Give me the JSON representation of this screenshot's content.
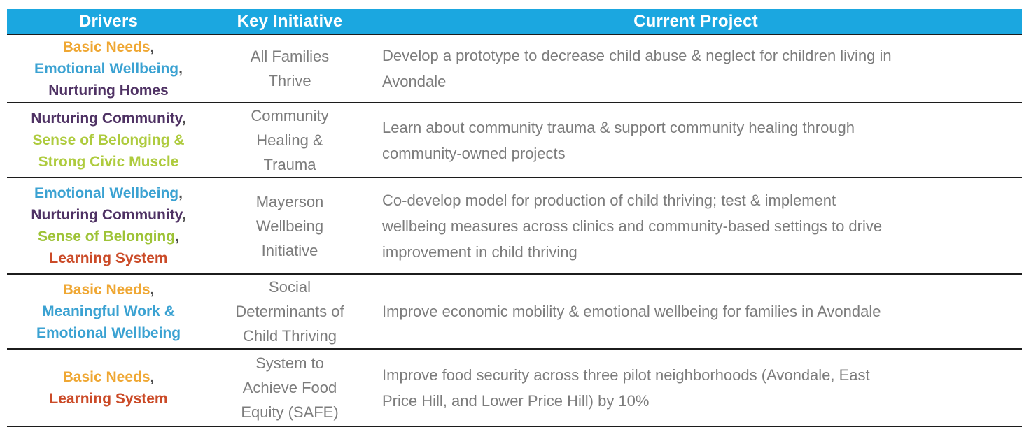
{
  "colors": {
    "header_bg": "#1BA7E0",
    "header_text": "#FFFFFF",
    "border": "#1C1C1C",
    "text_gray": "#7C7C7C",
    "comma": "#4D4D4D",
    "driver_orange": "#EFA733",
    "driver_blue": "#3BA2D2",
    "driver_purple": "#4F3264",
    "driver_green": "#AECB3E",
    "driver_red": "#CB4B28"
  },
  "table": {
    "headers": [
      "Drivers",
      "Key Initiative",
      "Current Project"
    ],
    "rows": [
      {
        "driver_lines": [
          {
            "text": "Basic Needs",
            "color": "#EFA733",
            "comma": ","
          },
          {
            "text": "Emotional Wellbeing",
            "color": "#3BA2D2",
            "comma": ","
          },
          {
            "text": "Nurturing Homes",
            "color": "#4F3264",
            "comma": ""
          }
        ],
        "initiative": "All Families Thrive",
        "initiative_lines": [
          "All Families",
          "Thrive"
        ],
        "project": "Develop a prototype to decrease child abuse & neglect for children living in Avondale",
        "project_lines": [
          "Develop a prototype to decrease child abuse & neglect for children living in",
          "Avondale"
        ]
      },
      {
        "driver_lines": [
          {
            "text": "Nurturing Community",
            "color": "#4F3264",
            "comma": ","
          },
          {
            "text": "Sense of Belonging &",
            "color": "#AECB3E",
            "comma": ""
          },
          {
            "text": "Strong Civic Muscle",
            "color": "#AECB3E",
            "comma": ""
          }
        ],
        "initiative": "Community Healing & Trauma",
        "initiative_lines": [
          "Community",
          "Healing &",
          "Trauma"
        ],
        "project": "Learn about community trauma & support community healing through community-owned projects",
        "project_lines": [
          "Learn about community trauma & support community healing through",
          "community-owned projects"
        ]
      },
      {
        "driver_lines": [
          {
            "text": "Emotional Wellbeing",
            "color": "#3BA2D2",
            "comma": ","
          },
          {
            "text": "Nurturing Community",
            "color": "#4F3264",
            "comma": ","
          },
          {
            "text": "Sense of Belonging",
            "color": "#9EC337",
            "comma": ","
          },
          {
            "text": "Learning System",
            "color": "#CB4B28",
            "comma": ""
          }
        ],
        "initiative": "Mayerson Wellbeing Initiative",
        "initiative_lines": [
          "Mayerson",
          "Wellbeing",
          "Initiative"
        ],
        "project": "Co-develop model for production of child thriving; test & implement wellbeing measures across clinics and community-based settings to drive improvement in child thriving",
        "project_lines": [
          "Co-develop model for production of child thriving; test & implement",
          "wellbeing measures across clinics and community-based settings to drive",
          "improvement in child thriving"
        ]
      },
      {
        "driver_lines": [
          {
            "text": "Basic Needs",
            "color": "#EFA733",
            "comma": ","
          },
          {
            "text": "Meaningful Work &",
            "color": "#3BA2D2",
            "comma": ""
          },
          {
            "text": "Emotional Wellbeing",
            "color": "#3BA2D2",
            "comma": ""
          }
        ],
        "initiative": "Social Determinants of Child Thriving",
        "initiative_lines": [
          "Social",
          "Determinants of",
          "Child Thriving"
        ],
        "project": "Improve economic mobility & emotional wellbeing for families in Avondale",
        "project_lines": [
          "Improve economic mobility & emotional wellbeing for families in Avondale"
        ]
      },
      {
        "driver_lines": [
          {
            "text": "Basic Needs",
            "color": "#EFA733",
            "comma": ","
          },
          {
            "text": "Learning System",
            "color": "#CB4B28",
            "comma": ""
          }
        ],
        "initiative": "System to Achieve Food Equity (SAFE)",
        "initiative_lines": [
          "System to",
          "Achieve Food",
          "Equity (SAFE)"
        ],
        "project": "Improve food security across three pilot neighborhoods (Avondale, East Price Hill, and Lower Price Hill) by 10%",
        "project_lines": [
          "Improve food security across three pilot neighborhoods (Avondale, East",
          "Price Hill, and Lower Price Hill) by 10%"
        ]
      }
    ]
  }
}
